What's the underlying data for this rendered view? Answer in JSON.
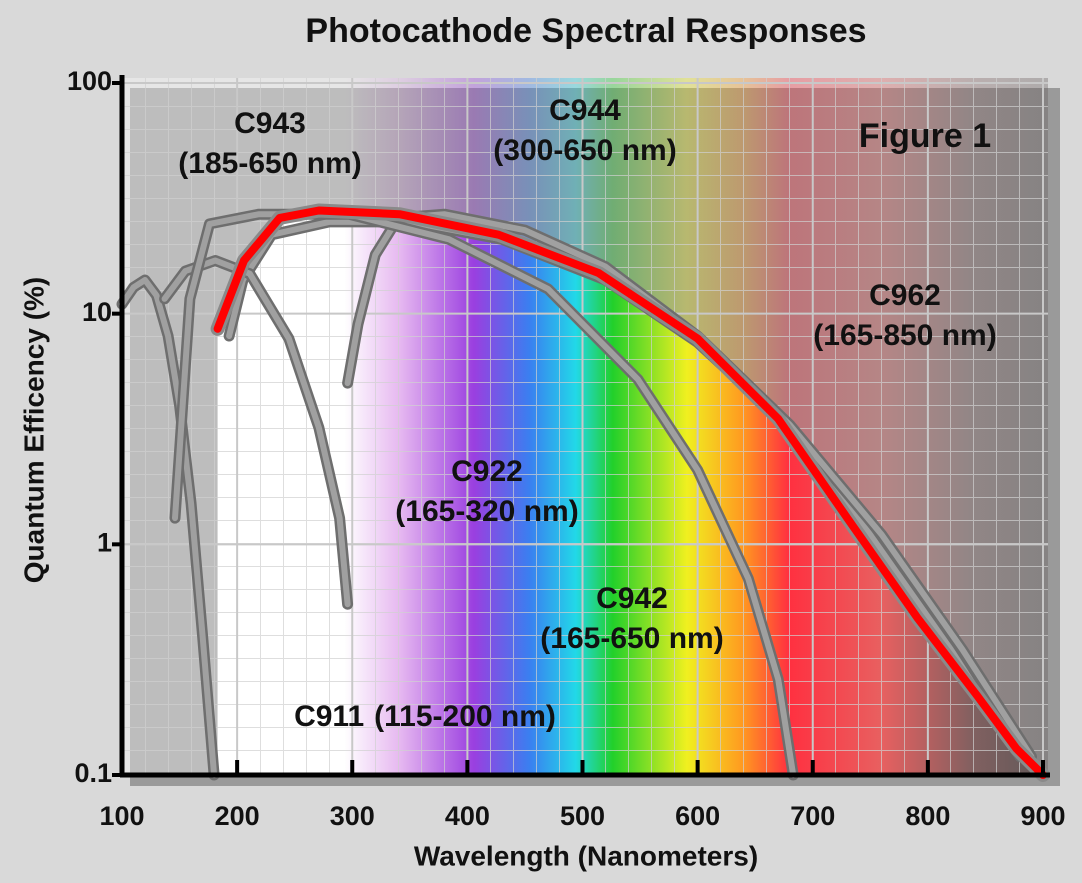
{
  "chart_data": {
    "type": "line",
    "title": "Photocathode Spectral Responses",
    "annotation": "Figure 1",
    "xlabel": "Wavelength (Nanometers)",
    "ylabel": "Quantum Efficency (%)",
    "xlim": [
      100,
      900
    ],
    "xticks": [
      100,
      200,
      300,
      400,
      500,
      600,
      700,
      800,
      900
    ],
    "ylim": [
      0.1,
      100
    ],
    "yticks": [
      0.1,
      1,
      10,
      100
    ],
    "log_y": true,
    "grid": true,
    "series": [
      {
        "name": "C911",
        "range": "(115-200 nm)",
        "color": "#a0a0a0",
        "x": [
          100,
          110,
          120,
          130,
          140,
          150,
          160,
          170,
          180
        ],
        "values": [
          11,
          13,
          14,
          12,
          8,
          4,
          1.5,
          0.4,
          0.1
        ]
      },
      {
        "name": "C943",
        "range": "(185-650 nm)",
        "color": "#a0a0a0",
        "x": [
          193,
          205,
          230,
          280,
          350,
          430,
          520,
          600,
          680,
          750,
          820,
          880
        ],
        "values": [
          8,
          14,
          22,
          25,
          25,
          21,
          14,
          7.5,
          3.2,
          1.1,
          0.35,
          0.12
        ]
      },
      {
        "name": "C944",
        "range": "(300-650 nm)",
        "color": "#a0a0a0",
        "x": [
          296,
          305,
          320,
          340,
          380,
          450,
          520,
          600,
          680,
          760,
          830,
          890
        ],
        "values": [
          5,
          9,
          18,
          26,
          27,
          23,
          16,
          8,
          3.3,
          1.1,
          0.35,
          0.12
        ]
      },
      {
        "name": "C922",
        "range": "(165-320 nm)",
        "color": "#a0a0a0",
        "x": [
          137,
          155,
          181,
          211,
          245,
          271,
          289,
          296
        ],
        "values": [
          11.6,
          15.3,
          17,
          14.9,
          7.8,
          3.2,
          1.3,
          0.55
        ]
      },
      {
        "name": "C942",
        "range": "(165-650 nm)",
        "color": "#a0a0a0",
        "x": [
          146,
          159,
          176,
          219,
          297,
          384,
          470,
          548,
          600,
          644,
          670,
          683
        ],
        "values": [
          1.3,
          11.6,
          24.5,
          27,
          27,
          21,
          12.8,
          5.2,
          2.1,
          0.71,
          0.26,
          0.1
        ]
      },
      {
        "name": "C962",
        "range": "(165-850 nm)",
        "color": "#ff0000",
        "x": [
          183,
          206,
          237,
          271,
          341,
          427,
          514,
          600,
          670,
          730,
          791,
          843,
          877,
          900
        ],
        "values": [
          8.6,
          17,
          26,
          28,
          27,
          22,
          15,
          7.8,
          3.5,
          1.3,
          0.48,
          0.22,
          0.13,
          0.1
        ]
      }
    ]
  }
}
